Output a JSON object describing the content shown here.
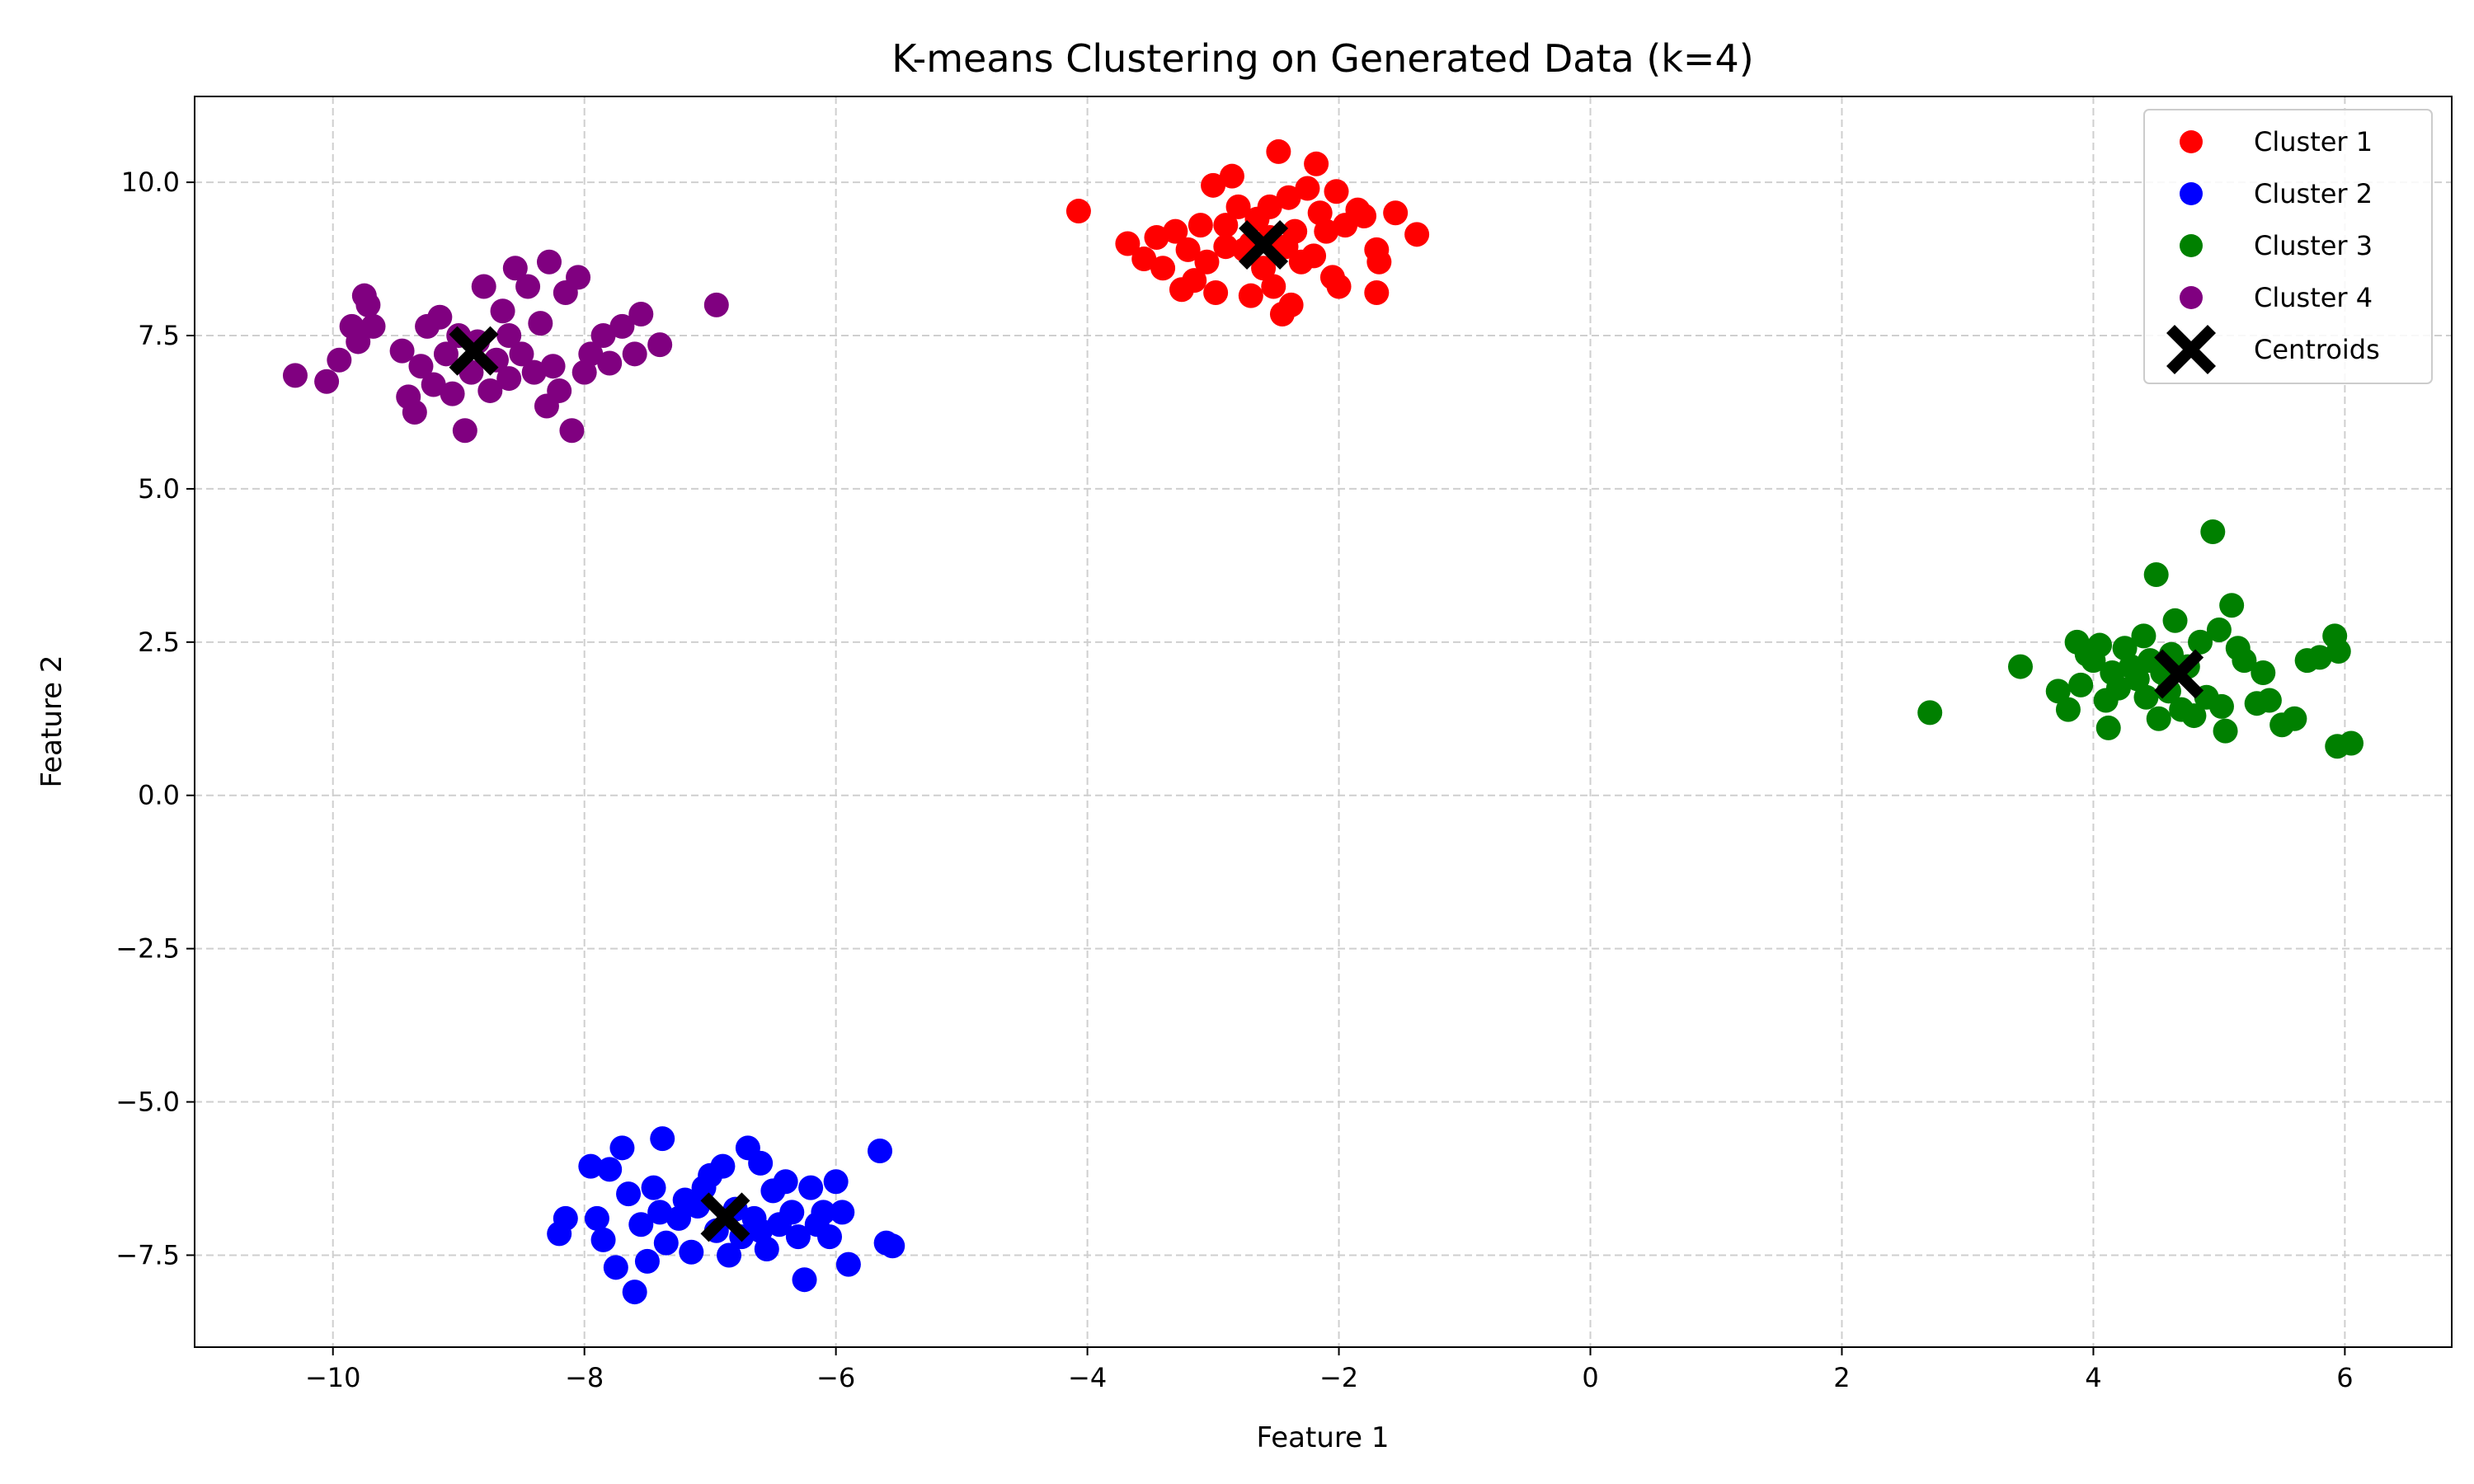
{
  "chart_data": {
    "type": "scatter",
    "title": "K-means Clustering on Generated Data (k=4)",
    "xlabel": "Feature 1",
    "ylabel": "Feature 2",
    "xlim": [
      -11.1,
      6.85
    ],
    "ylim": [
      -9.0,
      11.4
    ],
    "xticks": [
      -10,
      -8,
      -6,
      -4,
      -2,
      0,
      2,
      4,
      6
    ],
    "xtick_labels": [
      "−10",
      "−8",
      "−6",
      "−4",
      "−2",
      "0",
      "2",
      "4",
      "6"
    ],
    "yticks": [
      -7.5,
      -5.0,
      -2.5,
      0.0,
      2.5,
      5.0,
      7.5,
      10.0
    ],
    "ytick_labels": [
      "−7.5",
      "−5.0",
      "−2.5",
      "0.0",
      "2.5",
      "5.0",
      "7.5",
      "10.0"
    ],
    "grid": true,
    "grid_style": "dashed",
    "legend_position": "upper right",
    "series": [
      {
        "name": "Cluster 1",
        "color": "#ff0000",
        "points": [
          [
            -4.07,
            9.53
          ],
          [
            -3.68,
            9.0
          ],
          [
            -3.55,
            8.75
          ],
          [
            -3.45,
            9.1
          ],
          [
            -3.4,
            8.6
          ],
          [
            -3.3,
            9.2
          ],
          [
            -3.25,
            8.25
          ],
          [
            -3.15,
            8.4
          ],
          [
            -3.1,
            9.3
          ],
          [
            -3.05,
            8.7
          ],
          [
            -3.0,
            9.95
          ],
          [
            -2.98,
            8.2
          ],
          [
            -2.9,
            8.95
          ],
          [
            -2.85,
            10.1
          ],
          [
            -2.8,
            9.6
          ],
          [
            -2.75,
            8.9
          ],
          [
            -2.7,
            8.15
          ],
          [
            -2.65,
            9.4
          ],
          [
            -2.6,
            8.6
          ],
          [
            -2.55,
            9.1
          ],
          [
            -2.52,
            8.3
          ],
          [
            -2.48,
            10.5
          ],
          [
            -2.45,
            7.85
          ],
          [
            -2.42,
            8.95
          ],
          [
            -2.4,
            9.75
          ],
          [
            -2.38,
            8.0
          ],
          [
            -2.35,
            9.2
          ],
          [
            -2.3,
            8.7
          ],
          [
            -2.25,
            9.9
          ],
          [
            -2.2,
            8.8
          ],
          [
            -2.18,
            10.3
          ],
          [
            -2.15,
            9.5
          ],
          [
            -2.1,
            9.2
          ],
          [
            -2.05,
            8.45
          ],
          [
            -2.02,
            9.85
          ],
          [
            -2.0,
            8.3
          ],
          [
            -1.95,
            9.3
          ],
          [
            -1.85,
            9.55
          ],
          [
            -1.8,
            9.45
          ],
          [
            -1.7,
            8.9
          ],
          [
            -1.68,
            8.7
          ],
          [
            -1.7,
            8.2
          ],
          [
            -1.55,
            9.5
          ],
          [
            -1.38,
            9.15
          ],
          [
            -2.9,
            9.3
          ],
          [
            -2.55,
            9.6
          ],
          [
            -3.2,
            8.9
          ],
          [
            -2.7,
            9.0
          ]
        ]
      },
      {
        "name": "Cluster 2",
        "color": "#0000ff",
        "points": [
          [
            -8.2,
            -7.15
          ],
          [
            -8.15,
            -6.9
          ],
          [
            -7.95,
            -6.05
          ],
          [
            -7.9,
            -6.9
          ],
          [
            -7.85,
            -7.25
          ],
          [
            -7.8,
            -6.1
          ],
          [
            -7.75,
            -7.7
          ],
          [
            -7.7,
            -5.75
          ],
          [
            -7.65,
            -6.5
          ],
          [
            -7.6,
            -8.1
          ],
          [
            -7.55,
            -7.0
          ],
          [
            -7.5,
            -7.6
          ],
          [
            -7.45,
            -6.4
          ],
          [
            -7.4,
            -6.8
          ],
          [
            -7.38,
            -5.6
          ],
          [
            -7.35,
            -7.3
          ],
          [
            -7.25,
            -6.9
          ],
          [
            -7.2,
            -6.6
          ],
          [
            -7.15,
            -7.45
          ],
          [
            -7.1,
            -6.7
          ],
          [
            -7.05,
            -6.4
          ],
          [
            -7.0,
            -6.2
          ],
          [
            -6.95,
            -7.1
          ],
          [
            -6.9,
            -6.05
          ],
          [
            -6.85,
            -7.5
          ],
          [
            -6.8,
            -6.75
          ],
          [
            -6.75,
            -7.2
          ],
          [
            -6.7,
            -5.75
          ],
          [
            -6.65,
            -6.9
          ],
          [
            -6.6,
            -6.0
          ],
          [
            -6.55,
            -7.4
          ],
          [
            -6.5,
            -6.45
          ],
          [
            -6.45,
            -7.0
          ],
          [
            -6.4,
            -6.3
          ],
          [
            -6.35,
            -6.8
          ],
          [
            -6.3,
            -7.2
          ],
          [
            -6.25,
            -7.9
          ],
          [
            -6.2,
            -6.4
          ],
          [
            -6.15,
            -7.0
          ],
          [
            -6.1,
            -6.8
          ],
          [
            -6.05,
            -7.2
          ],
          [
            -6.0,
            -6.3
          ],
          [
            -5.95,
            -6.8
          ],
          [
            -5.9,
            -7.65
          ],
          [
            -5.65,
            -5.8
          ],
          [
            -5.6,
            -7.3
          ],
          [
            -5.55,
            -7.35
          ],
          [
            -6.6,
            -7.1
          ]
        ]
      },
      {
        "name": "Cluster 3",
        "color": "#008000",
        "points": [
          [
            2.7,
            1.35
          ],
          [
            3.42,
            2.1
          ],
          [
            3.72,
            1.7
          ],
          [
            3.8,
            1.4
          ],
          [
            3.87,
            2.5
          ],
          [
            3.9,
            1.8
          ],
          [
            3.95,
            2.3
          ],
          [
            4.0,
            2.2
          ],
          [
            4.05,
            2.45
          ],
          [
            4.1,
            1.55
          ],
          [
            4.12,
            1.1
          ],
          [
            4.15,
            2.0
          ],
          [
            4.2,
            1.75
          ],
          [
            4.25,
            2.4
          ],
          [
            4.3,
            2.1
          ],
          [
            4.35,
            1.9
          ],
          [
            4.4,
            2.6
          ],
          [
            4.42,
            1.6
          ],
          [
            4.45,
            2.2
          ],
          [
            4.5,
            3.6
          ],
          [
            4.52,
            1.25
          ],
          [
            4.55,
            2.0
          ],
          [
            4.6,
            1.7
          ],
          [
            4.62,
            2.3
          ],
          [
            4.65,
            2.85
          ],
          [
            4.7,
            1.4
          ],
          [
            4.75,
            2.1
          ],
          [
            4.8,
            1.3
          ],
          [
            4.85,
            2.5
          ],
          [
            4.9,
            1.6
          ],
          [
            4.95,
            4.3
          ],
          [
            5.0,
            2.7
          ],
          [
            5.02,
            1.45
          ],
          [
            5.05,
            1.05
          ],
          [
            5.1,
            3.1
          ],
          [
            5.15,
            2.4
          ],
          [
            5.2,
            2.2
          ],
          [
            5.3,
            1.5
          ],
          [
            5.35,
            2.0
          ],
          [
            5.4,
            1.55
          ],
          [
            5.5,
            1.15
          ],
          [
            5.6,
            1.25
          ],
          [
            5.7,
            2.2
          ],
          [
            5.8,
            2.25
          ],
          [
            5.92,
            2.6
          ],
          [
            5.94,
            0.8
          ],
          [
            5.95,
            2.35
          ],
          [
            6.05,
            0.85
          ]
        ]
      },
      {
        "name": "Cluster 4",
        "color": "#800080",
        "points": [
          [
            -10.3,
            6.85
          ],
          [
            -10.05,
            6.75
          ],
          [
            -9.95,
            7.1
          ],
          [
            -9.85,
            7.65
          ],
          [
            -9.8,
            7.4
          ],
          [
            -9.75,
            8.15
          ],
          [
            -9.72,
            8.0
          ],
          [
            -9.68,
            7.65
          ],
          [
            -9.45,
            7.25
          ],
          [
            -9.4,
            6.5
          ],
          [
            -9.35,
            6.25
          ],
          [
            -9.3,
            7.0
          ],
          [
            -9.25,
            7.65
          ],
          [
            -9.2,
            6.7
          ],
          [
            -9.15,
            7.8
          ],
          [
            -9.1,
            7.2
          ],
          [
            -9.05,
            6.55
          ],
          [
            -9.0,
            7.5
          ],
          [
            -8.95,
            5.95
          ],
          [
            -8.9,
            6.9
          ],
          [
            -8.85,
            7.4
          ],
          [
            -8.8,
            8.3
          ],
          [
            -8.75,
            6.6
          ],
          [
            -8.7,
            7.1
          ],
          [
            -8.65,
            7.9
          ],
          [
            -8.6,
            6.8
          ],
          [
            -8.55,
            8.6
          ],
          [
            -8.5,
            7.2
          ],
          [
            -8.45,
            8.3
          ],
          [
            -8.4,
            6.9
          ],
          [
            -8.35,
            7.7
          ],
          [
            -8.3,
            6.35
          ],
          [
            -8.28,
            8.7
          ],
          [
            -8.25,
            7.0
          ],
          [
            -8.2,
            6.6
          ],
          [
            -8.15,
            8.2
          ],
          [
            -8.1,
            5.95
          ],
          [
            -8.05,
            8.45
          ],
          [
            -8.0,
            6.9
          ],
          [
            -7.95,
            7.2
          ],
          [
            -7.85,
            7.5
          ],
          [
            -7.8,
            7.05
          ],
          [
            -7.7,
            7.65
          ],
          [
            -7.6,
            7.2
          ],
          [
            -7.55,
            7.85
          ],
          [
            -7.4,
            7.35
          ],
          [
            -6.95,
            8.0
          ],
          [
            -8.6,
            7.5
          ]
        ]
      }
    ],
    "centroids": {
      "name": "Centroids",
      "color": "#000000",
      "marker": "X",
      "points": [
        [
          -2.6,
          8.98
        ],
        [
          -6.88,
          -6.88
        ],
        [
          4.68,
          1.98
        ],
        [
          -8.88,
          7.25
        ]
      ]
    }
  }
}
